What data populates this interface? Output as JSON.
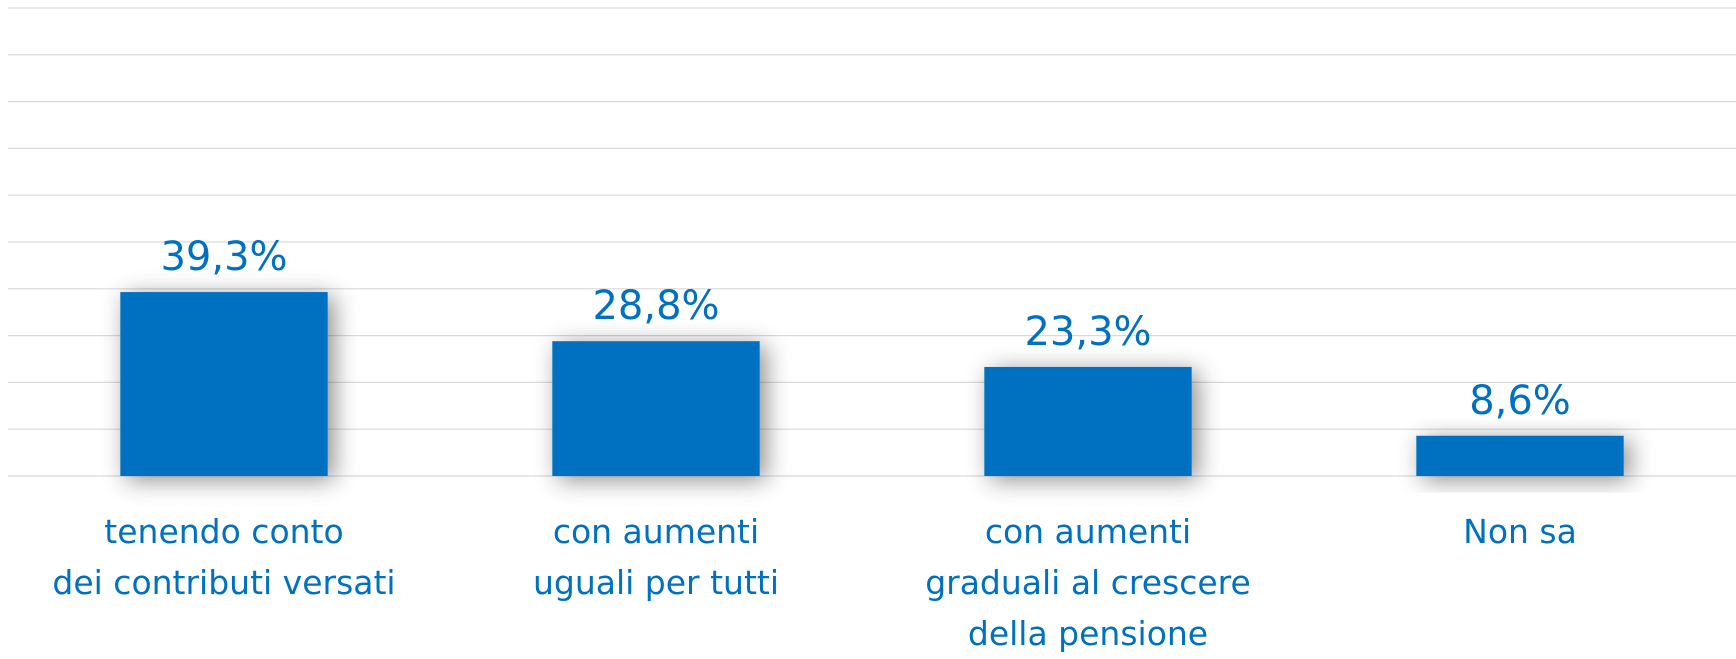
{
  "chart_data": {
    "type": "bar",
    "categories": [
      "tenendo conto\ndei contributi versati",
      "con aumenti\nuguali per tutti",
      "con aumenti\ngraduali al crescere\ndella pensione",
      "Non sa"
    ],
    "values": [
      39.3,
      28.8,
      23.3,
      8.6
    ],
    "value_labels": [
      "39,3%",
      "28,8%",
      "23,3%",
      "8,6%"
    ],
    "color": "#0070c0",
    "ylim": [
      0,
      100
    ],
    "yticks": [
      0,
      10,
      20,
      30,
      40,
      50,
      60,
      70,
      80,
      90,
      100
    ],
    "grid": true
  }
}
